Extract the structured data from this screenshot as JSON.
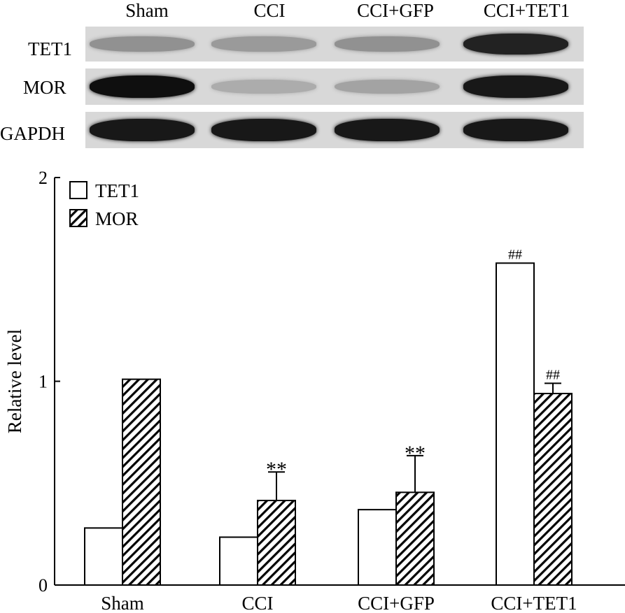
{
  "blot": {
    "lanes": [
      "Sham",
      "CCI",
      "CCI+GFP",
      "CCI+TET1"
    ],
    "rows": [
      {
        "label": "TET1",
        "intensity": [
          0.3,
          0.25,
          0.3,
          0.9
        ]
      },
      {
        "label": "MOR",
        "intensity": [
          1.0,
          0.15,
          0.2,
          0.95
        ]
      },
      {
        "label": "GAPDH",
        "intensity": [
          0.95,
          0.95,
          0.95,
          0.95
        ]
      }
    ]
  },
  "chart_data": {
    "type": "bar",
    "title": "",
    "xlabel": "",
    "ylabel": "Relative level",
    "ylim": [
      0,
      2
    ],
    "yticks": [
      "0",
      "1",
      "2"
    ],
    "categories": [
      "Sham",
      "CCI",
      "CCI+GFP",
      "CCI+TET1"
    ],
    "legend_position": "top-left",
    "series": [
      {
        "name": "TET1",
        "pattern": "open",
        "values": [
          0.28,
          0.235,
          0.37,
          1.58
        ],
        "errors": [
          0,
          0,
          0,
          0
        ],
        "annotations": [
          "",
          "",
          "",
          "##"
        ]
      },
      {
        "name": "MOR",
        "pattern": "hatched",
        "values": [
          1.01,
          0.415,
          0.455,
          0.94
        ],
        "errors": [
          0,
          0.14,
          0.18,
          0.05
        ],
        "annotations": [
          "",
          "**",
          "**",
          "##"
        ]
      }
    ]
  }
}
